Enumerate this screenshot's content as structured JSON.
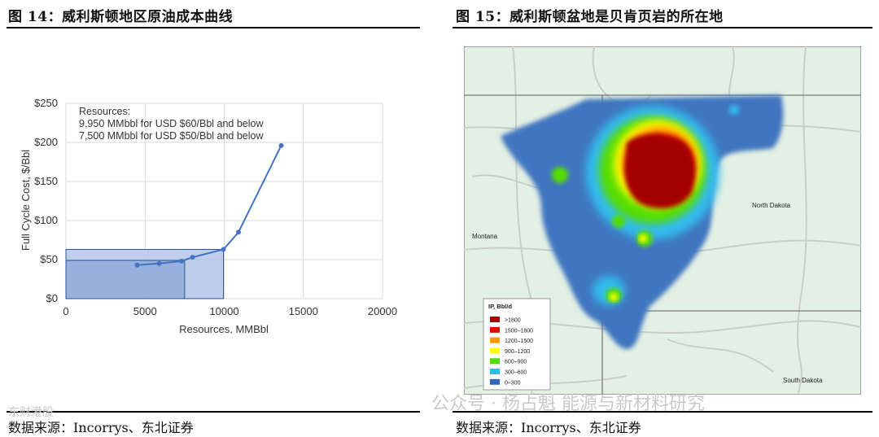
{
  "left": {
    "title": "图 14：威利斯顿地区原油成本曲线",
    "source": "数据来源：Incorrys、东北证券"
  },
  "right": {
    "title": "图 15：威利斯顿盆地是贝肯页岩的所在地",
    "source": "数据来源：Incorrys、东北证券"
  },
  "watermark": "公众号 · 杨占魁 能源与新材料研究",
  "watermark_left": "东财港股",
  "chart_data": {
    "type": "line",
    "title": "",
    "xlabel": "Resources, MMBbl",
    "ylabel": "Full Cycle Cost, $/Bbl",
    "xlim": [
      0,
      20000
    ],
    "ylim": [
      0,
      250
    ],
    "x_ticks": [
      0,
      5000,
      10000,
      15000,
      20000
    ],
    "x_tick_labels": [
      "0",
      "5000",
      "10000",
      "15000",
      "20000"
    ],
    "y_ticks": [
      0,
      50,
      100,
      150,
      200,
      250
    ],
    "y_tick_labels": [
      "$0",
      "$50",
      "$100",
      "$150",
      "$200",
      "$250"
    ],
    "grid": true,
    "series": [
      {
        "x": [
          4500,
          5900,
          7300,
          8000,
          9950,
          10900,
          13600
        ],
        "y": [
          43,
          45,
          48,
          53,
          63,
          85,
          196
        ],
        "color": "#4472c4"
      }
    ],
    "highlight_boxes": [
      {
        "x_max": 9950,
        "y_max": 63,
        "color": "#b4c7e7"
      },
      {
        "x_max": 7500,
        "y_max": 49,
        "color": "#8faadc"
      }
    ],
    "annotation": [
      "Resources:",
      "9,950 MMbbl for USD $60/Bbl and below",
      "7,500 MMbbl for USD $50/Bbl and below"
    ]
  },
  "map": {
    "state_labels": [
      "North Dakota",
      "Montana",
      "South Dakota"
    ],
    "legend": {
      "title": "IP, Bbl/d",
      "items": [
        {
          "label": ">1800",
          "color": "#a50000"
        },
        {
          "label": "1500–1800",
          "color": "#e60000"
        },
        {
          "label": "1200–1500",
          "color": "#ff9900"
        },
        {
          "label": "900–1200",
          "color": "#ffff00"
        },
        {
          "label": "600–900",
          "color": "#55dd00"
        },
        {
          "label": "300–600",
          "color": "#33bbee"
        },
        {
          "label": "0–300",
          "color": "#3366bb"
        }
      ]
    },
    "colors": {
      "background": "#e3f0e4",
      "basin": "#3f76c0",
      "border": "#808080"
    }
  }
}
